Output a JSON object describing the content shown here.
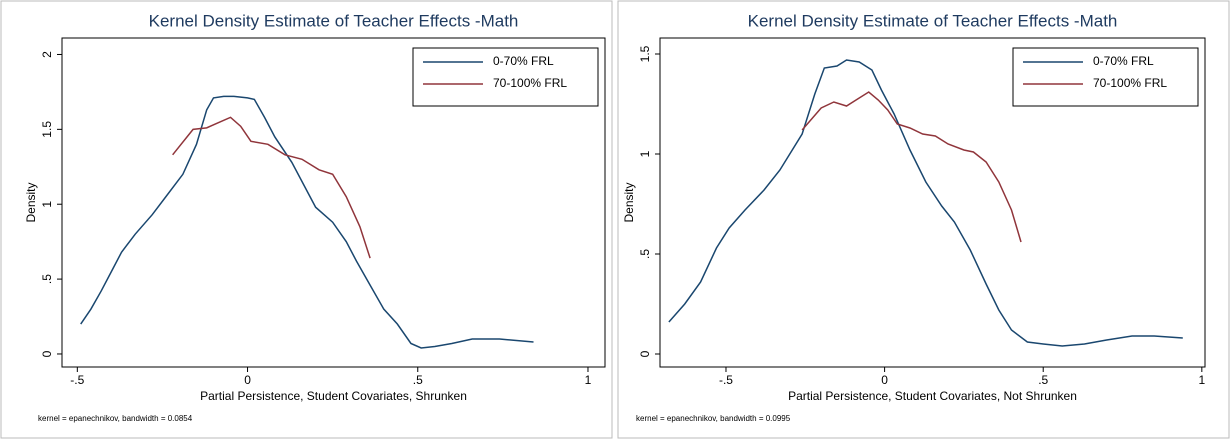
{
  "chart_data": [
    {
      "type": "line",
      "title": "Kernel Density Estimate of Teacher Effects -Math",
      "xlabel": "Partial Persistence, Student Covariates, Shrunken",
      "ylabel": "Density",
      "note": "kernel = epanechnikov, bandwidth = 0.0854",
      "xlim": [
        -0.545,
        1.05
      ],
      "ylim": [
        -0.087,
        2.11
      ],
      "xticks": [
        {
          "value": -0.5,
          "label": "-.5"
        },
        0,
        {
          "value": 0.5,
          "label": ".5"
        },
        1
      ],
      "yticks": [
        0,
        {
          "value": 0.5,
          "label": ".5"
        },
        1,
        1.5,
        2
      ],
      "grid": false,
      "legend": "top-right",
      "series": [
        {
          "name": "0-70% FRL",
          "color": "#1a476f",
          "x": [
            -0.49,
            -0.46,
            -0.43,
            -0.4,
            -0.37,
            -0.33,
            -0.28,
            -0.24,
            -0.19,
            -0.15,
            -0.12,
            -0.1,
            -0.07,
            -0.04,
            0.0,
            0.02,
            0.05,
            0.08,
            0.13,
            0.2,
            0.25,
            0.29,
            0.32,
            0.36,
            0.4,
            0.44,
            0.48,
            0.51,
            0.55,
            0.6,
            0.66,
            0.74,
            0.84
          ],
          "values": [
            0.2,
            0.3,
            0.42,
            0.55,
            0.68,
            0.8,
            0.93,
            1.05,
            1.2,
            1.4,
            1.63,
            1.71,
            1.72,
            1.72,
            1.71,
            1.7,
            1.58,
            1.45,
            1.28,
            0.98,
            0.88,
            0.75,
            0.62,
            0.46,
            0.3,
            0.2,
            0.07,
            0.04,
            0.05,
            0.07,
            0.1,
            0.1,
            0.08
          ]
        },
        {
          "name": "70-100% FRL",
          "color": "#90353b",
          "x": [
            -0.22,
            -0.16,
            -0.12,
            -0.09,
            -0.05,
            -0.02,
            0.01,
            0.06,
            0.11,
            0.16,
            0.21,
            0.25,
            0.29,
            0.33,
            0.36
          ],
          "values": [
            1.33,
            1.5,
            1.51,
            1.54,
            1.58,
            1.52,
            1.42,
            1.4,
            1.33,
            1.3,
            1.23,
            1.2,
            1.05,
            0.85,
            0.64
          ]
        }
      ]
    },
    {
      "type": "line",
      "title": "Kernel Density Estimate of Teacher Effects -Math",
      "xlabel": "Partial Persistence, Student Covariates, Not Shrunken",
      "ylabel": "Density",
      "note": "kernel = epanechnikov, bandwidth = 0.0995",
      "xlim": [
        -0.708,
        1.01
      ],
      "ylim": [
        -0.065,
        1.58
      ],
      "xticks": [
        {
          "value": -0.5,
          "label": "-.5"
        },
        0,
        {
          "value": 0.5,
          "label": ".5"
        },
        1
      ],
      "yticks": [
        0,
        {
          "value": 0.5,
          "label": ".5"
        },
        1,
        1.5
      ],
      "grid": false,
      "legend": "top-right",
      "series": [
        {
          "name": "0-70% FRL",
          "color": "#1a476f",
          "x": [
            -0.68,
            -0.63,
            -0.58,
            -0.53,
            -0.49,
            -0.44,
            -0.38,
            -0.33,
            -0.26,
            -0.22,
            -0.19,
            -0.15,
            -0.12,
            -0.08,
            -0.04,
            -0.01,
            0.03,
            0.08,
            0.13,
            0.18,
            0.22,
            0.27,
            0.32,
            0.36,
            0.4,
            0.45,
            0.5,
            0.56,
            0.63,
            0.7,
            0.78,
            0.85,
            0.94
          ],
          "values": [
            0.16,
            0.25,
            0.36,
            0.53,
            0.63,
            0.72,
            0.82,
            0.92,
            1.1,
            1.3,
            1.43,
            1.44,
            1.47,
            1.46,
            1.42,
            1.32,
            1.2,
            1.02,
            0.86,
            0.74,
            0.66,
            0.52,
            0.35,
            0.22,
            0.12,
            0.06,
            0.05,
            0.04,
            0.05,
            0.07,
            0.09,
            0.09,
            0.08
          ]
        },
        {
          "name": "70-100% FRL",
          "color": "#90353b",
          "x": [
            -0.26,
            -0.2,
            -0.16,
            -0.12,
            -0.08,
            -0.05,
            -0.02,
            0.01,
            0.04,
            0.08,
            0.12,
            0.16,
            0.2,
            0.25,
            0.28,
            0.32,
            0.36,
            0.4,
            0.43
          ],
          "values": [
            1.12,
            1.23,
            1.26,
            1.24,
            1.28,
            1.31,
            1.27,
            1.22,
            1.15,
            1.13,
            1.1,
            1.09,
            1.05,
            1.02,
            1.01,
            0.96,
            0.86,
            0.72,
            0.56
          ]
        }
      ]
    }
  ]
}
